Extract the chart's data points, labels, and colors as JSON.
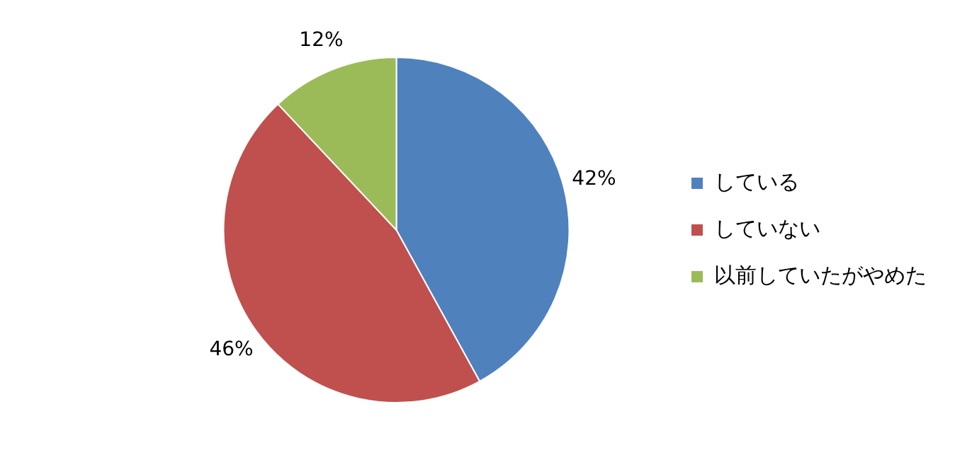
{
  "chart_data": {
    "type": "pie",
    "categories": [
      "している",
      "していない",
      "以前していたがやめた"
    ],
    "values": [
      42,
      46,
      12
    ],
    "colors": [
      "#4f81bd",
      "#c0504d",
      "#9bbb59"
    ],
    "value_labels": [
      "42%",
      "46%",
      "12%"
    ],
    "legend": "right"
  }
}
